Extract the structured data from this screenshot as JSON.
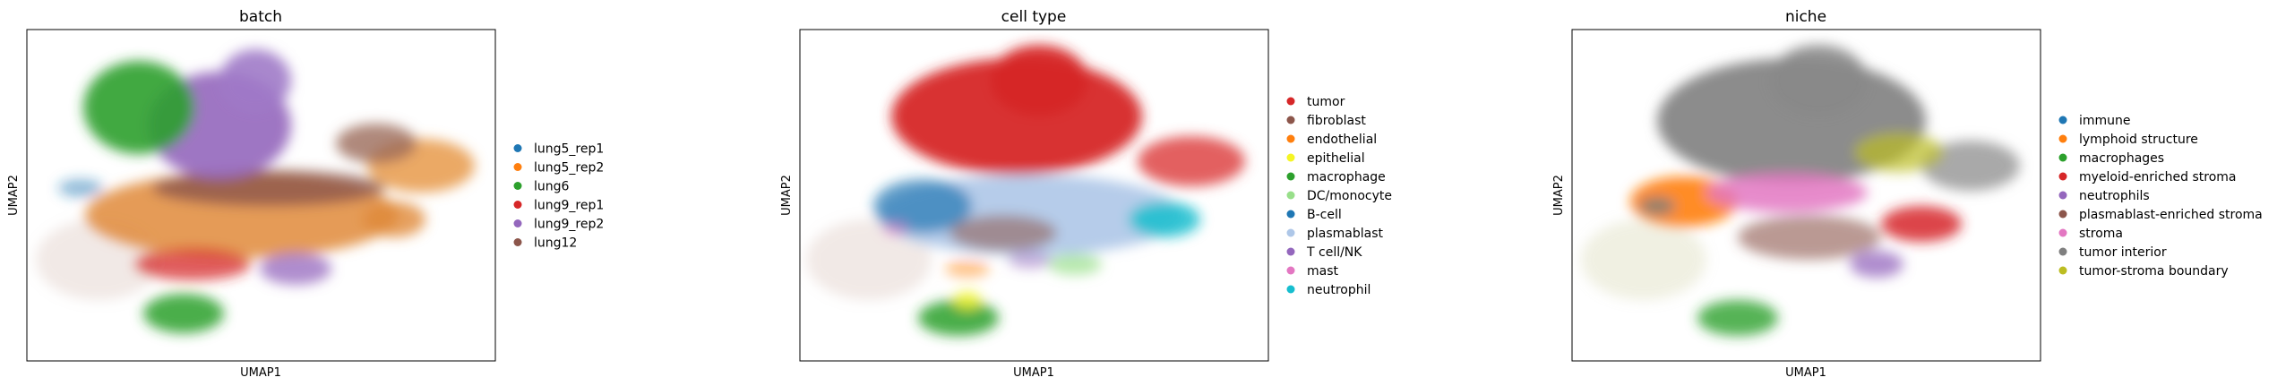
{
  "chart_data": [
    {
      "type": "scatter",
      "title": "batch",
      "xlabel": "UMAP1",
      "ylabel": "UMAP2",
      "xticks": false,
      "yticks": false,
      "grid": false,
      "legend_position": "right",
      "series": [
        {
          "name": "lung5_rep1",
          "color": "#1f77b4"
        },
        {
          "name": "lung5_rep2",
          "color": "#ff7f0e"
        },
        {
          "name": "lung6",
          "color": "#2ca02c"
        },
        {
          "name": "lung9_rep1",
          "color": "#d62728"
        },
        {
          "name": "lung9_rep2",
          "color": "#9467bd"
        },
        {
          "name": "lung12",
          "color": "#8c564b"
        }
      ]
    },
    {
      "type": "scatter",
      "title": "cell type",
      "xlabel": "UMAP1",
      "ylabel": "UMAP2",
      "xticks": false,
      "yticks": false,
      "grid": false,
      "legend_position": "right",
      "series": [
        {
          "name": "tumor",
          "color": "#d62728"
        },
        {
          "name": "fibroblast",
          "color": "#8c564b"
        },
        {
          "name": "endothelial",
          "color": "#ff7f0e"
        },
        {
          "name": "epithelial",
          "color": "#f5f525"
        },
        {
          "name": "macrophage",
          "color": "#2ca02c"
        },
        {
          "name": "DC/monocyte",
          "color": "#98df8a"
        },
        {
          "name": "B-cell",
          "color": "#1f77b4"
        },
        {
          "name": "plasmablast",
          "color": "#aec7e8"
        },
        {
          "name": "T cell/NK",
          "color": "#9467bd"
        },
        {
          "name": "mast",
          "color": "#e377c2"
        },
        {
          "name": "neutrophil",
          "color": "#17becf"
        }
      ]
    },
    {
      "type": "scatter",
      "title": "niche",
      "xlabel": "UMAP1",
      "ylabel": "UMAP2",
      "xticks": false,
      "yticks": false,
      "grid": false,
      "legend_position": "right",
      "series": [
        {
          "name": "immune",
          "color": "#1f77b4"
        },
        {
          "name": "lymphoid structure",
          "color": "#ff7f0e"
        },
        {
          "name": "macrophages",
          "color": "#2ca02c"
        },
        {
          "name": "myeloid-enriched stroma",
          "color": "#d62728"
        },
        {
          "name": "neutrophils",
          "color": "#9467bd"
        },
        {
          "name": "plasmablast-enriched stroma",
          "color": "#8c564b"
        },
        {
          "name": "stroma",
          "color": "#e377c2"
        },
        {
          "name": "tumor interior",
          "color": "#7f7f7f"
        },
        {
          "name": "tumor-stroma boundary",
          "color": "#bcbd22"
        }
      ]
    }
  ]
}
